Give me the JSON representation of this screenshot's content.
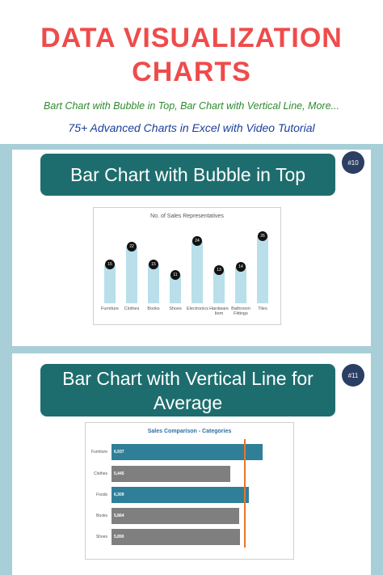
{
  "header": {
    "title_line1": "DATA VISUALIZATION",
    "title_line2": "CHARTS",
    "subtitle": "Bart Chart with Bubble in Top, Bar Chart with Vertical Line, More...",
    "tagline": "75+ Advanced Charts in Excel with Video Tutorial"
  },
  "sections": [
    {
      "heading": "Bar Chart with Bubble in Top",
      "badge": "#10"
    },
    {
      "heading": "Bar Chart with Vertical Line for Average",
      "badge": "#11"
    }
  ],
  "chart_data": [
    {
      "type": "bar",
      "title": "No. of Sales Representatives",
      "categories": [
        "Furniture",
        "Clothes",
        "Books",
        "Shoes",
        "Electronics",
        "Hardware Item",
        "Bathroom Fittings",
        "Tiles"
      ],
      "values": [
        15,
        22,
        15,
        11,
        24,
        13,
        14,
        26
      ],
      "color": "#b9dfea",
      "bubble_color": "#111111"
    },
    {
      "type": "hbar",
      "title": "Sales Comparison - Categories",
      "categories": [
        "Furniture",
        "Clothes",
        "Foods",
        "Books",
        "Shoes"
      ],
      "values": [
        6937,
        5445,
        6309,
        5864,
        5890
      ],
      "value_labels": [
        "6,937",
        "5,445",
        "6,309",
        "5,864",
        "5,890"
      ],
      "colors": [
        "#2f7f98",
        "#7f7f7f",
        "#2f7f98",
        "#7f7f7f",
        "#7f7f7f"
      ],
      "average": 6089,
      "average_color": "#e8762b"
    }
  ]
}
